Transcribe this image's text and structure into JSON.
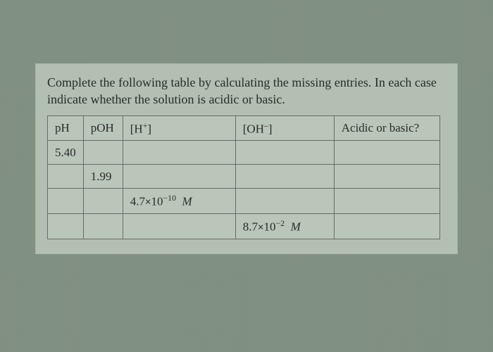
{
  "instruction": "Complete the following table by calculating the missing entries. In each case indicate whether the solution is acidic or basic.",
  "table": {
    "headers": {
      "ph": "pH",
      "poh": "pOH",
      "h_prefix": "[H",
      "h_sup": "+",
      "h_suffix": "]",
      "oh_prefix": "[OH",
      "oh_sup": "–",
      "oh_suffix": "]",
      "acid_basic": "Acidic or basic?"
    },
    "rows": [
      {
        "ph": "5.40",
        "poh": "",
        "h": "",
        "oh": "",
        "ab": ""
      },
      {
        "ph": "",
        "poh": "1.99",
        "h": "",
        "oh": "",
        "ab": ""
      },
      {
        "ph": "",
        "poh": "",
        "h_coef": "4.7",
        "h_exp": "−10",
        "h_unit": "M",
        "oh": "",
        "ab": ""
      },
      {
        "ph": "",
        "poh": "",
        "h": "",
        "oh_coef": "8.7",
        "oh_exp": "−2",
        "oh_unit": "M",
        "ab": ""
      }
    ]
  }
}
